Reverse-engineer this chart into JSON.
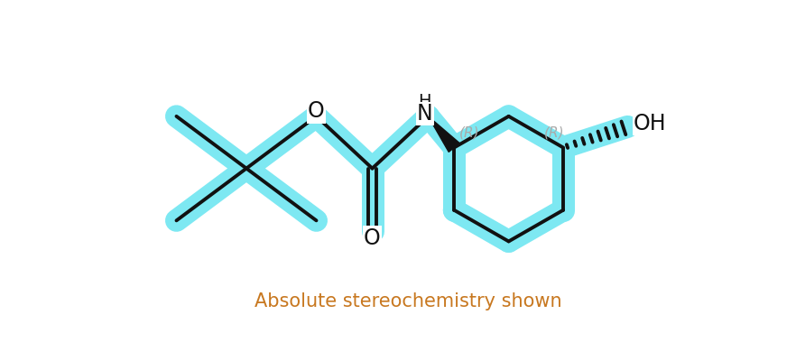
{
  "bg_color": "#ffffff",
  "highlight_color": "#7de8f2",
  "bond_color": "#111111",
  "atom_label_color": "#111111",
  "stereo_label_color": "#aaaaaa",
  "subtitle": "Absolute stereochemistry shown",
  "subtitle_color": "#c87820",
  "subtitle_fontsize": 15,
  "highlight_lw": 18,
  "bond_lw": 2.8,
  "highlight_alpha": 1.0,
  "figsize": [
    8.82,
    4.0
  ],
  "dpi": 100,
  "xlim": [
    0,
    8.82
  ],
  "ylim": [
    0,
    4.0
  ]
}
